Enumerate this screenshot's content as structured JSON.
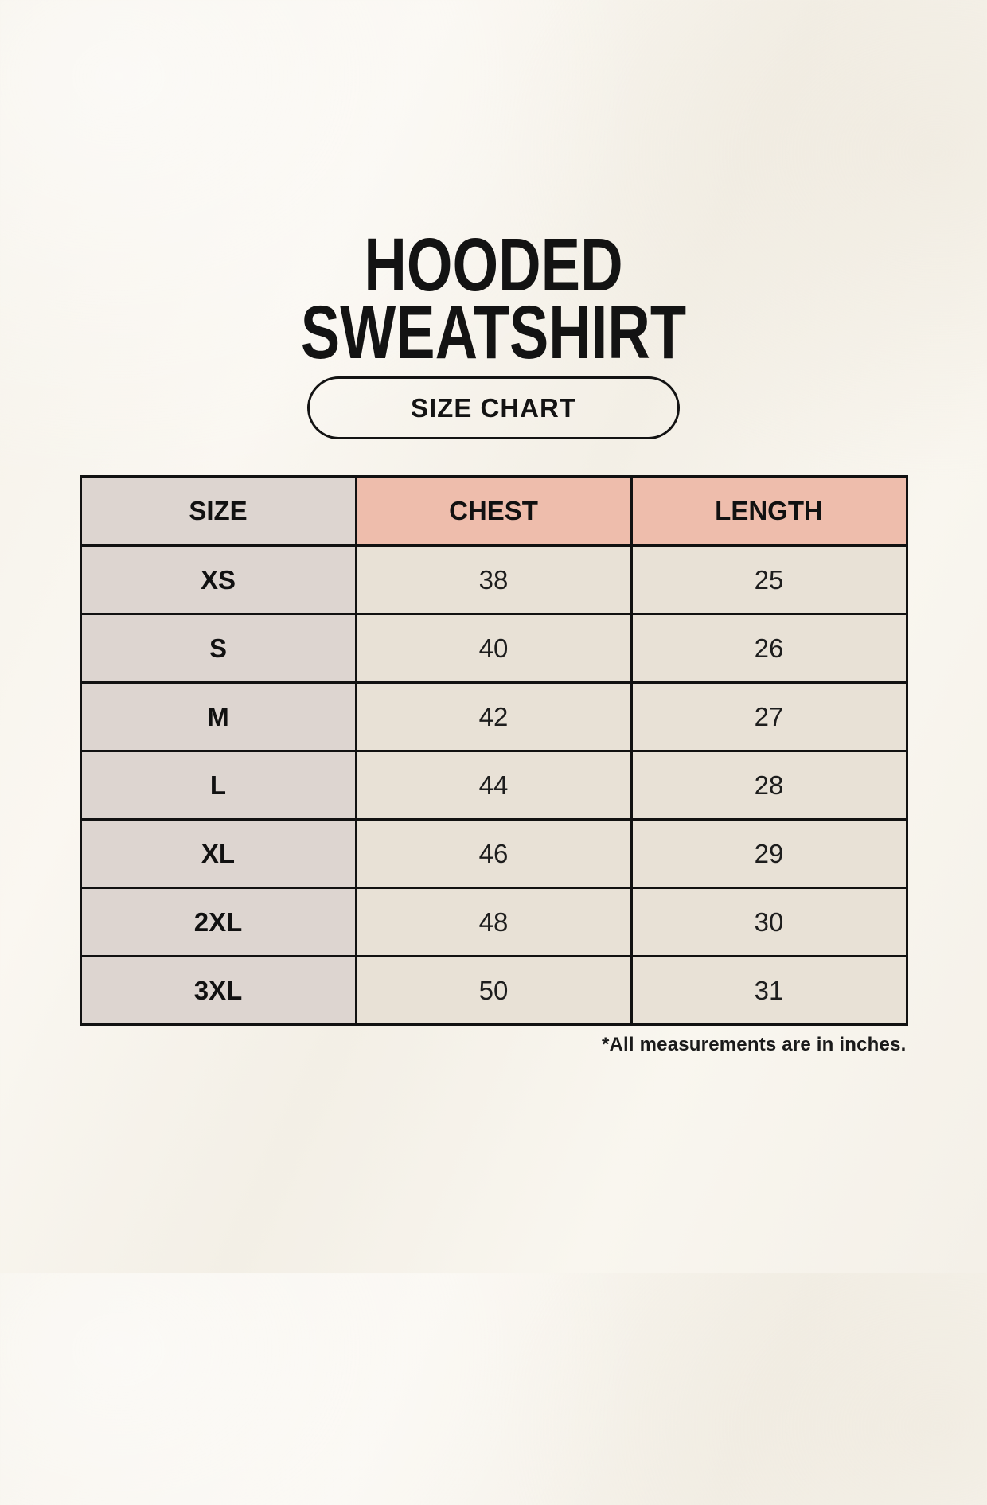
{
  "page": {
    "title_line1": "HOODED",
    "title_line2": "SWEATSHIRT",
    "size_chart_button": "SIZE CHART"
  },
  "colors": {
    "page_background": "#f7f4ed",
    "size_column_bg": "#ddd5d0",
    "accent_header_bg": "#eebdac",
    "data_cell_bg": "#e8e1d6",
    "table_border": "#111111",
    "text": "#141414"
  },
  "chart_data": {
    "type": "table",
    "title": "HOODED SWEATSHIRT",
    "subtitle": "SIZE CHART",
    "columns": [
      "SIZE",
      "CHEST",
      "LENGTH"
    ],
    "rows": [
      [
        "XS",
        38,
        25
      ],
      [
        "S",
        40,
        26
      ],
      [
        "M",
        42,
        27
      ],
      [
        "L",
        44,
        28
      ],
      [
        "XL",
        46,
        29
      ],
      [
        "2XL",
        48,
        30
      ],
      [
        "3XL",
        50,
        31
      ]
    ],
    "units_note": "*All measurements are in inches."
  }
}
